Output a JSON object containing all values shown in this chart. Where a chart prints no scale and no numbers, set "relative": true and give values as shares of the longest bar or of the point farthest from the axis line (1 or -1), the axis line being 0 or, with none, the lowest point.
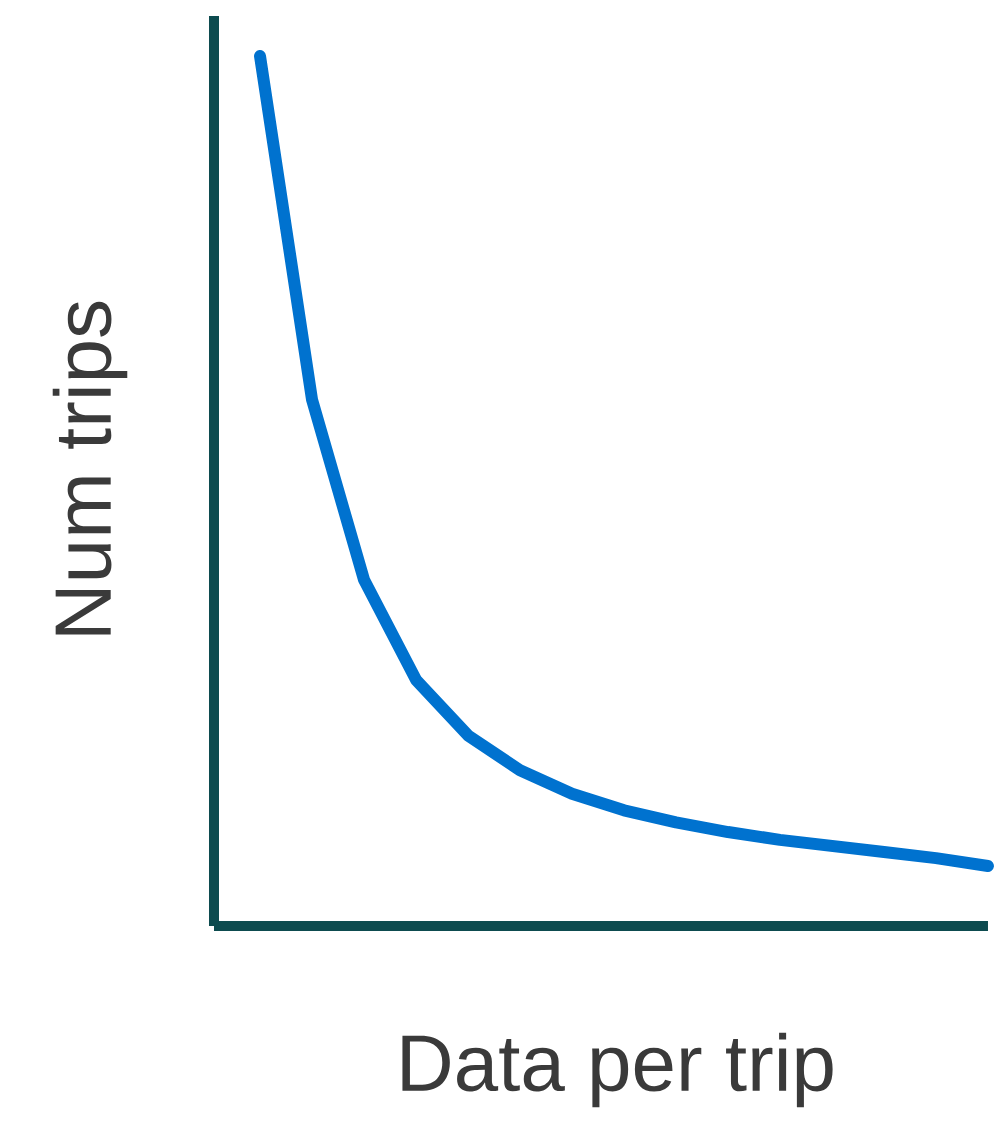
{
  "chart_data": {
    "type": "line",
    "relative": true,
    "xlabel": "Data per trip",
    "ylabel": "Num trips",
    "categories": [
      null,
      null,
      null,
      null,
      null,
      null,
      null,
      null,
      null,
      null,
      null,
      null,
      null,
      null,
      null
    ],
    "series": [
      {
        "color": "#0072cf",
        "values": [
          1,
          0.605,
          0.398,
          0.283,
          0.219,
          0.179,
          0.152,
          0.133,
          0.119,
          0.108,
          0.099,
          0.092,
          0.085,
          0.078,
          0.069
        ]
      }
    ]
  }
}
